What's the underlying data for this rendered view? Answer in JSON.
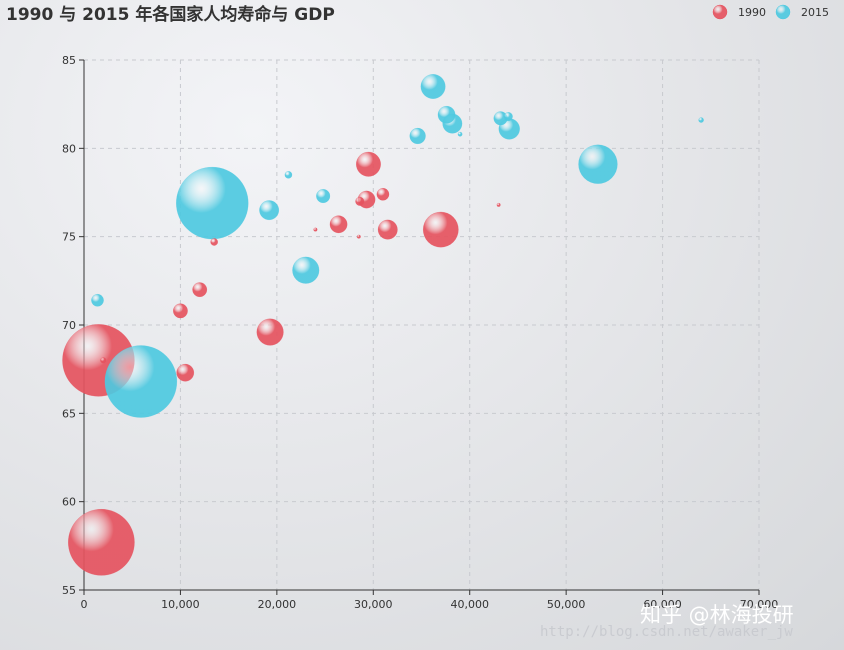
{
  "chart_data": {
    "type": "scatter",
    "title": "1990 与 2015 年各国家人均寿命与 GDP",
    "xlabel": "",
    "ylabel": "",
    "xlim": [
      0,
      70000
    ],
    "ylim": [
      55,
      85
    ],
    "x_ticks": [
      0,
      10000,
      20000,
      30000,
      40000,
      50000,
      60000,
      70000
    ],
    "x_tick_labels": [
      "0",
      "10,000",
      "20,000",
      "30,000",
      "40,000",
      "50,000",
      "60,000",
      "70,000"
    ],
    "y_ticks": [
      55,
      60,
      65,
      70,
      75,
      80,
      85
    ],
    "y_tick_labels": [
      "55",
      "60",
      "65",
      "70",
      "75",
      "80",
      "85"
    ],
    "grid": true,
    "legend_position": "top-right",
    "series": [
      {
        "name": "1990",
        "color": "#e5535f",
        "points": [
          {
            "x": 1500,
            "y": 68,
            "size": 1.0
          },
          {
            "x": 1800,
            "y": 57.7,
            "size": 0.92
          },
          {
            "x": 2000,
            "y": 68,
            "size": 0.08
          },
          {
            "x": 10000,
            "y": 70.8,
            "size": 0.2
          },
          {
            "x": 10500,
            "y": 67.3,
            "size": 0.24
          },
          {
            "x": 12000,
            "y": 72,
            "size": 0.2
          },
          {
            "x": 13500,
            "y": 74.7,
            "size": 0.1
          },
          {
            "x": 19300,
            "y": 69.6,
            "size": 0.37
          },
          {
            "x": 24000,
            "y": 75.4,
            "size": 0.05
          },
          {
            "x": 26400,
            "y": 75.7,
            "size": 0.24
          },
          {
            "x": 28500,
            "y": 75,
            "size": 0.05
          },
          {
            "x": 28600,
            "y": 77,
            "size": 0.12
          },
          {
            "x": 29300,
            "y": 77.1,
            "size": 0.24
          },
          {
            "x": 29500,
            "y": 79.1,
            "size": 0.34
          },
          {
            "x": 31000,
            "y": 77.4,
            "size": 0.17
          },
          {
            "x": 31500,
            "y": 75.4,
            "size": 0.27
          },
          {
            "x": 37000,
            "y": 75.4,
            "size": 0.49
          },
          {
            "x": 43000,
            "y": 76.8,
            "size": 0.05
          }
        ]
      },
      {
        "name": "2015",
        "color": "#4ec9e0",
        "points": [
          {
            "x": 1400,
            "y": 71.4,
            "size": 0.17
          },
          {
            "x": 5900,
            "y": 66.8,
            "size": 1.0
          },
          {
            "x": 13300,
            "y": 76.9,
            "size": 1.0
          },
          {
            "x": 19200,
            "y": 76.5,
            "size": 0.27
          },
          {
            "x": 21200,
            "y": 78.5,
            "size": 0.1
          },
          {
            "x": 23000,
            "y": 73.1,
            "size": 0.37
          },
          {
            "x": 24800,
            "y": 77.3,
            "size": 0.19
          },
          {
            "x": 34600,
            "y": 80.7,
            "size": 0.22
          },
          {
            "x": 36200,
            "y": 83.5,
            "size": 0.34
          },
          {
            "x": 37600,
            "y": 81.9,
            "size": 0.24
          },
          {
            "x": 38200,
            "y": 81.4,
            "size": 0.27
          },
          {
            "x": 39000,
            "y": 80.8,
            "size": 0.06
          },
          {
            "x": 43200,
            "y": 81.7,
            "size": 0.19
          },
          {
            "x": 44000,
            "y": 81.8,
            "size": 0.12
          },
          {
            "x": 44100,
            "y": 81.1,
            "size": 0.29
          },
          {
            "x": 53300,
            "y": 79.1,
            "size": 0.54
          },
          {
            "x": 64000,
            "y": 81.6,
            "size": 0.07
          }
        ]
      }
    ]
  },
  "watermark": {
    "text": "知乎 @林海投研",
    "url": "http://blog.csdn.net/awaker_jw"
  }
}
